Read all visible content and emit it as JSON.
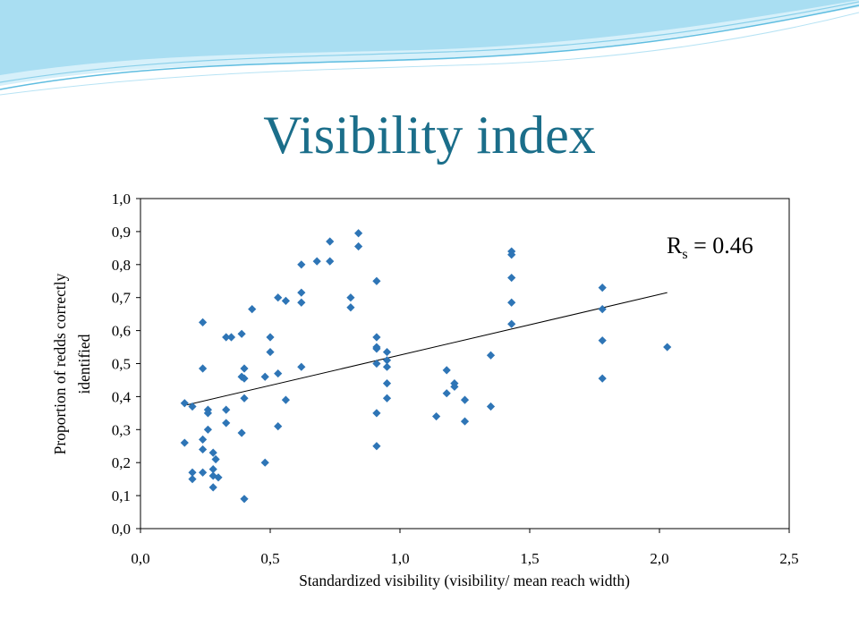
{
  "slide": {
    "title": "Visibility index"
  },
  "colors": {
    "title": "#1b6e8a",
    "marker": "#2e75b6",
    "wave_light": "#bfe6f5",
    "wave_mid": "#7fcbe6"
  },
  "chart_data": {
    "type": "scatter",
    "xlabel": "Standardized visibility (visibility/ mean reach width)",
    "ylabel_lines": [
      "Proportion of redds correctly",
      "identified"
    ],
    "xlim": [
      0,
      2.5
    ],
    "ylim": [
      0,
      1.0
    ],
    "x_ticks": [
      "0,0",
      "0,5",
      "1,0",
      "1,5",
      "2,0",
      "2,5"
    ],
    "x_tick_values": [
      0,
      0.5,
      1.0,
      1.5,
      2.0,
      2.5
    ],
    "y_ticks": [
      "0,0",
      "0,1",
      "0,2",
      "0,3",
      "0,4",
      "0,5",
      "0,6",
      "0,7",
      "0,8",
      "0,9",
      "1,0"
    ],
    "y_tick_values": [
      0,
      0.1,
      0.2,
      0.3,
      0.4,
      0.5,
      0.6,
      0.7,
      0.8,
      0.9,
      1.0
    ],
    "grid": false,
    "legend": "none",
    "marker": "diamond",
    "annotation": {
      "main": "R",
      "sub": "s",
      "rest": " = 0.46"
    },
    "trendline": {
      "x": [
        0.18,
        2.03
      ],
      "y": [
        0.375,
        0.715
      ]
    },
    "points": [
      [
        0.17,
        0.38
      ],
      [
        0.17,
        0.26
      ],
      [
        0.2,
        0.37
      ],
      [
        0.2,
        0.17
      ],
      [
        0.2,
        0.15
      ],
      [
        0.24,
        0.625
      ],
      [
        0.24,
        0.485
      ],
      [
        0.24,
        0.27
      ],
      [
        0.24,
        0.24
      ],
      [
        0.24,
        0.17
      ],
      [
        0.26,
        0.36
      ],
      [
        0.26,
        0.35
      ],
      [
        0.26,
        0.3
      ],
      [
        0.28,
        0.23
      ],
      [
        0.28,
        0.18
      ],
      [
        0.28,
        0.16
      ],
      [
        0.28,
        0.125
      ],
      [
        0.29,
        0.21
      ],
      [
        0.3,
        0.155
      ],
      [
        0.33,
        0.58
      ],
      [
        0.33,
        0.36
      ],
      [
        0.33,
        0.32
      ],
      [
        0.35,
        0.58
      ],
      [
        0.39,
        0.59
      ],
      [
        0.39,
        0.46
      ],
      [
        0.39,
        0.29
      ],
      [
        0.4,
        0.485
      ],
      [
        0.4,
        0.455
      ],
      [
        0.4,
        0.395
      ],
      [
        0.4,
        0.09
      ],
      [
        0.43,
        0.665
      ],
      [
        0.48,
        0.46
      ],
      [
        0.48,
        0.2
      ],
      [
        0.5,
        0.58
      ],
      [
        0.5,
        0.535
      ],
      [
        0.53,
        0.7
      ],
      [
        0.53,
        0.47
      ],
      [
        0.53,
        0.31
      ],
      [
        0.56,
        0.69
      ],
      [
        0.56,
        0.39
      ],
      [
        0.62,
        0.8
      ],
      [
        0.62,
        0.715
      ],
      [
        0.62,
        0.685
      ],
      [
        0.62,
        0.49
      ],
      [
        0.68,
        0.81
      ],
      [
        0.73,
        0.87
      ],
      [
        0.73,
        0.81
      ],
      [
        0.81,
        0.7
      ],
      [
        0.81,
        0.67
      ],
      [
        0.84,
        0.895
      ],
      [
        0.84,
        0.855
      ],
      [
        0.91,
        0.75
      ],
      [
        0.91,
        0.58
      ],
      [
        0.91,
        0.55
      ],
      [
        0.91,
        0.545
      ],
      [
        0.91,
        0.5
      ],
      [
        0.91,
        0.35
      ],
      [
        0.91,
        0.25
      ],
      [
        0.95,
        0.535
      ],
      [
        0.95,
        0.51
      ],
      [
        0.95,
        0.49
      ],
      [
        0.95,
        0.44
      ],
      [
        0.95,
        0.395
      ],
      [
        1.14,
        0.34
      ],
      [
        1.18,
        0.48
      ],
      [
        1.18,
        0.41
      ],
      [
        1.21,
        0.44
      ],
      [
        1.21,
        0.43
      ],
      [
        1.25,
        0.39
      ],
      [
        1.25,
        0.325
      ],
      [
        1.35,
        0.525
      ],
      [
        1.35,
        0.37
      ],
      [
        1.43,
        0.84
      ],
      [
        1.43,
        0.83
      ],
      [
        1.43,
        0.76
      ],
      [
        1.43,
        0.685
      ],
      [
        1.43,
        0.62
      ],
      [
        1.78,
        0.73
      ],
      [
        1.78,
        0.665
      ],
      [
        1.78,
        0.57
      ],
      [
        1.78,
        0.455
      ],
      [
        2.03,
        0.55
      ]
    ]
  }
}
